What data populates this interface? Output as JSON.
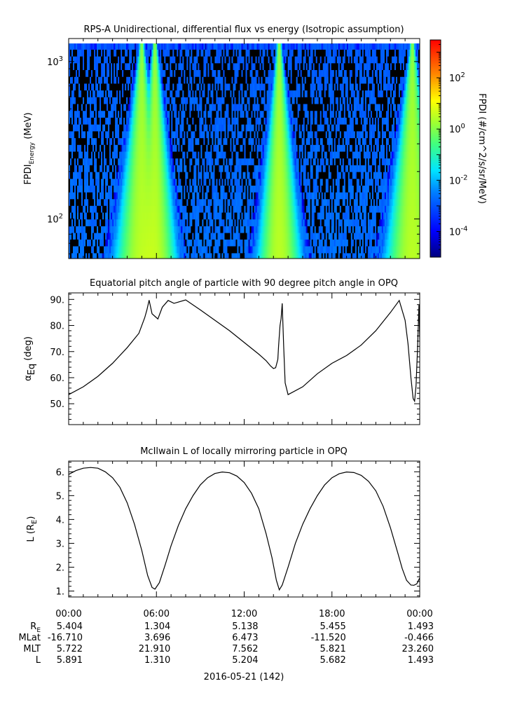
{
  "chart_data": [
    {
      "type": "heatmap",
      "title": "RPS-A Unidirectional, differential flux vs energy (Isotropic assumption)",
      "ylabel_main": "FPDI",
      "ylabel_sub": "Energy",
      "ylabel_unit": "(MeV)",
      "y_scale": "log",
      "ylim": [
        56,
        1400
      ],
      "y_ticks": [
        {
          "value": 100,
          "base": "10",
          "exp": "2"
        },
        {
          "value": 1000,
          "base": "10",
          "exp": "3"
        }
      ],
      "colorbar": {
        "label": "FPDI (#/cm^2/s/sr/MeV)",
        "scale": "log",
        "range": [
          1e-05,
          3000
        ],
        "ticks": [
          {
            "value": 0.0001,
            "base": "10",
            "exp": "-4"
          },
          {
            "value": 0.01,
            "base": "10",
            "exp": "-2"
          },
          {
            "value": 1,
            "base": "10",
            "exp": "0"
          },
          {
            "value": 100,
            "base": "10",
            "exp": "2"
          }
        ]
      },
      "energy_channels_mev": [
        58,
        64,
        71,
        78,
        86,
        95,
        105,
        116,
        128,
        141,
        156,
        172,
        190,
        210,
        232,
        256,
        283,
        312,
        345,
        381,
        421,
        465,
        514,
        568,
        627,
        693,
        765,
        845,
        934,
        1031,
        1139,
        1258
      ],
      "flux_peaks": [
        {
          "time_h": 5.0,
          "width_low_h": 0.55,
          "width_high_h": 0.05,
          "peak_flux": 3
        },
        {
          "time_h": 5.9,
          "width_low_h": 0.45,
          "width_high_h": 0.05,
          "peak_flux": 3
        },
        {
          "time_h": 14.4,
          "width_low_h": 0.45,
          "width_high_h": 0.05,
          "peak_flux": 3
        },
        {
          "time_h": 23.5,
          "width_low_h": 0.55,
          "width_high_h": 0.05,
          "peak_flux": 3
        }
      ],
      "background_flux": 0.0005
    },
    {
      "type": "line",
      "title": "Equatorial pitch angle of particle with 90 degree pitch angle in OPQ",
      "ylabel_main": "α",
      "ylabel_sub": "Eq",
      "ylabel_unit": "(deg)",
      "ylim": [
        42,
        92.5
      ],
      "y_ticks": [
        50,
        60,
        70,
        80,
        90
      ],
      "series": [
        {
          "x": [
            0,
            1,
            2,
            3,
            4,
            4.8,
            5.2,
            5.35,
            5.5,
            5.7,
            5.9,
            6.1,
            6.4,
            6.8,
            7.2,
            8.0,
            9.0,
            10.0,
            11.0,
            12.0,
            13.0,
            13.5,
            13.8,
            14.0,
            14.15,
            14.3,
            14.35,
            14.45,
            14.52,
            14.6,
            14.7,
            14.8,
            15.0,
            16.0,
            17.0,
            18.0,
            19.0,
            20.0,
            21.0,
            22.0,
            22.6,
            23.0,
            23.2,
            23.4,
            23.55,
            23.65,
            23.75,
            23.85,
            23.95,
            24.0
          ],
          "y": [
            53.5,
            56.5,
            60.5,
            65.5,
            71.5,
            77,
            83,
            86,
            89.7,
            84.5,
            83.5,
            82.5,
            87,
            89.6,
            88.5,
            89.8,
            86,
            82,
            78,
            73.5,
            69,
            66.5,
            64.5,
            63.5,
            63.8,
            67,
            72,
            80,
            82.5,
            88.5,
            72,
            58,
            53.5,
            56.5,
            61.5,
            65.5,
            68.5,
            72.5,
            78,
            85,
            89.6,
            82,
            73,
            60,
            52,
            51,
            57,
            71,
            88,
            74.5
          ]
        }
      ]
    },
    {
      "type": "line",
      "title": "McIlwain L of locally mirroring particle in OPQ",
      "ylabel_main": "L (R",
      "ylabel_sub": "E",
      "ylabel_unit": ")",
      "ylim": [
        0.75,
        6.45
      ],
      "y_ticks": [
        1,
        2,
        3,
        4,
        5,
        6
      ],
      "series": [
        {
          "x": [
            0,
            0.5,
            1,
            1.5,
            2,
            2.5,
            3,
            3.5,
            4,
            4.5,
            5,
            5.4,
            5.7,
            5.9,
            6.2,
            6.6,
            7,
            7.5,
            8,
            8.5,
            9,
            9.5,
            10,
            10.5,
            11,
            11.5,
            12,
            12.5,
            13,
            13.5,
            13.9,
            14.2,
            14.4,
            14.6,
            15,
            15.5,
            16,
            16.5,
            17,
            17.5,
            18,
            18.5,
            19,
            19.5,
            20,
            20.5,
            21,
            21.5,
            22,
            22.5,
            22.8,
            23.1,
            23.4,
            23.6,
            23.8,
            24.0
          ],
          "y": [
            5.89,
            6.05,
            6.15,
            6.18,
            6.15,
            6.0,
            5.75,
            5.35,
            4.7,
            3.8,
            2.7,
            1.65,
            1.15,
            1.08,
            1.35,
            2.1,
            2.9,
            3.75,
            4.45,
            5.0,
            5.45,
            5.75,
            5.93,
            5.99,
            5.96,
            5.82,
            5.55,
            5.1,
            4.45,
            3.4,
            2.4,
            1.45,
            1.05,
            1.25,
            2.0,
            3.0,
            3.8,
            4.45,
            5.0,
            5.45,
            5.75,
            5.92,
            5.99,
            5.97,
            5.85,
            5.6,
            5.2,
            4.55,
            3.65,
            2.6,
            1.95,
            1.45,
            1.25,
            1.24,
            1.3,
            1.55
          ]
        }
      ]
    }
  ],
  "x_axis": {
    "range_h": [
      0,
      24
    ],
    "tick_labels": [
      "00:00",
      "06:00",
      "12:00",
      "18:00",
      "00:00"
    ],
    "date_label": "2016-05-21 (142)"
  },
  "ephemeris": {
    "rows": [
      {
        "name_main": "R",
        "name_sub": "E",
        "values": [
          "5.404",
          "1.304",
          "5.138",
          "5.455",
          "1.493"
        ]
      },
      {
        "name_main": "MLat",
        "name_sub": "",
        "values": [
          "-16.710",
          "3.696",
          "6.473",
          "-11.520",
          "-0.466"
        ]
      },
      {
        "name_main": "MLT",
        "name_sub": "",
        "values": [
          "5.722",
          "21.910",
          "7.562",
          "5.821",
          "23.260"
        ]
      },
      {
        "name_main": "L",
        "name_sub": "",
        "values": [
          "5.891",
          "1.310",
          "5.204",
          "5.682",
          "1.493"
        ]
      }
    ]
  }
}
